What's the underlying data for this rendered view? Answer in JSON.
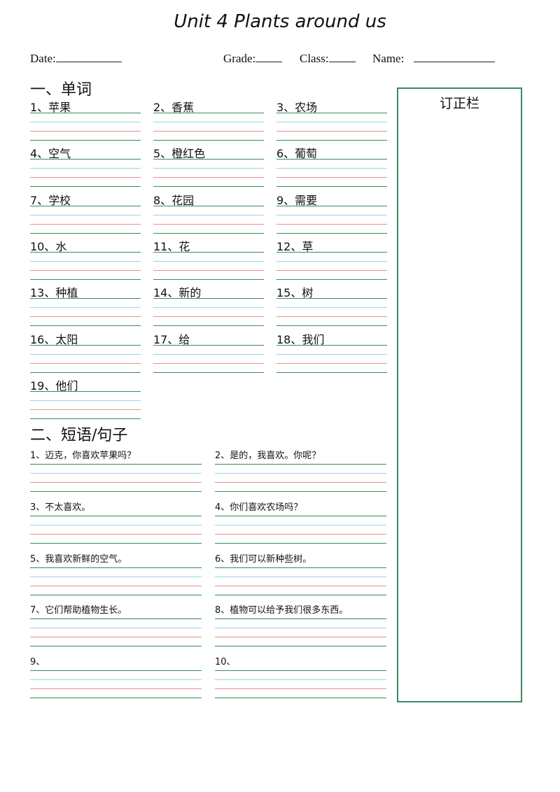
{
  "title": "Unit 4 Plants around us",
  "header": {
    "date_label": "Date:",
    "grade_label": "Grade:",
    "class_label": "Class:",
    "name_label": "Name:"
  },
  "correction_column": {
    "label": "订正栏"
  },
  "section1": {
    "title": "一、单词",
    "items": [
      "1、苹果",
      "2、香蕉",
      "3、农场",
      "4、空气",
      "5、橙红色",
      "6、葡萄",
      "7、学校",
      "8、花园",
      "9、需要",
      "10、水",
      "11、花",
      "12、草",
      "13、种植",
      "14、新的",
      "15、树",
      "16、太阳",
      "17、给",
      "18、我们",
      "19、他们"
    ]
  },
  "section2": {
    "title": "二、短语/句子",
    "items": [
      "1、迈克，你喜欢苹果吗？",
      "2、是的，我喜欢。你呢？",
      "3、不太喜欢。",
      "4、你们喜欢农场吗？",
      "5、我喜欢新鲜的空气。",
      "6、我们可以新种些树。",
      "7、它们帮助植物生长。",
      "8、植物可以给予我们很多东西。",
      "9、",
      "10、"
    ]
  },
  "colors": {
    "green": "#3b8a5e",
    "blue": "#9fd1e6",
    "red": "#ec8e8e"
  }
}
